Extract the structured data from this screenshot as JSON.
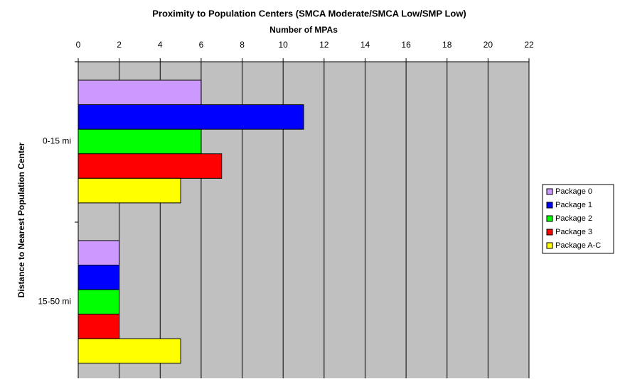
{
  "chart_data": {
    "type": "bar",
    "orientation": "horizontal",
    "title": "Proximity to Population Centers (SMCA Moderate/SMCA Low/SMP Low)",
    "xlabel": "Number of MPAs",
    "ylabel": "Distance to Nearest Population Center",
    "categories": [
      "0-15 mi",
      "15-50 mi"
    ],
    "series": [
      {
        "name": "Package 0",
        "color": "#cc99ff",
        "values": [
          6,
          2
        ]
      },
      {
        "name": "Package 1",
        "color": "#0000ff",
        "values": [
          11,
          2
        ]
      },
      {
        "name": "Package 2",
        "color": "#00ff00",
        "values": [
          6,
          2
        ]
      },
      {
        "name": "Package 3",
        "color": "#ff0000",
        "values": [
          7,
          2
        ]
      },
      {
        "name": "Package A-C",
        "color": "#ffff00",
        "values": [
          5,
          5
        ]
      }
    ],
    "xlim": [
      0,
      22
    ],
    "xticks": [
      0,
      2,
      4,
      6,
      8,
      10,
      12,
      14,
      16,
      18,
      20,
      22
    ],
    "grid": true,
    "legend": "right"
  }
}
